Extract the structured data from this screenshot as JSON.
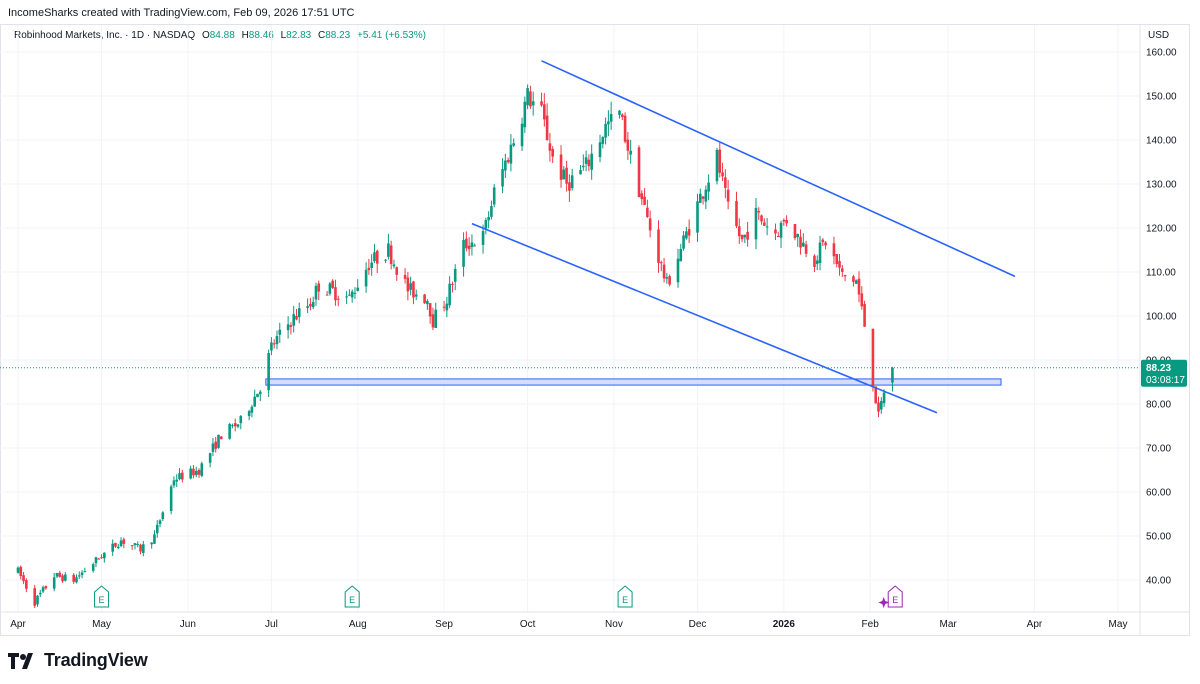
{
  "header": {
    "attribution": "IncomeSharks created with TradingView.com, Feb 09, 2026 17:51 UTC"
  },
  "legend": {
    "symbol": "Robinhood Markets, Inc. · 1D · NASDAQ",
    "open_label": "O",
    "open": "84.88",
    "high_label": "H",
    "high": "88.46",
    "low_label": "L",
    "low": "82.83",
    "close_label": "C",
    "close": "88.23",
    "change": "+5.41 (+6.53%)"
  },
  "price_axis": {
    "currency": "USD",
    "last_price": "88.23",
    "countdown": "03:08:17"
  },
  "footer": {
    "brand": "TradingView"
  },
  "colors": {
    "up": "#089981",
    "down": "#f23645",
    "trendline": "#2962ff",
    "zone_fill": "#c9d6fb",
    "zone_stroke": "#2962ff",
    "grid": "#f0f3fa"
  },
  "chart_data": {
    "type": "candlestick",
    "y_ticks": [
      "160.00",
      "150.00",
      "140.00",
      "130.00",
      "120.00",
      "110.00",
      "100.00",
      "90.00",
      "80.00",
      "70.00",
      "60.00",
      "50.00",
      "40.00"
    ],
    "y_range": [
      35,
      163
    ],
    "x_labels": [
      {
        "label": "Apr",
        "date": "2025-04-01"
      },
      {
        "label": "May",
        "date": "2025-05-01"
      },
      {
        "label": "Jun",
        "date": "2025-06-01"
      },
      {
        "label": "Jul",
        "date": "2025-07-01"
      },
      {
        "label": "Aug",
        "date": "2025-08-01"
      },
      {
        "label": "Sep",
        "date": "2025-09-01"
      },
      {
        "label": "Oct",
        "date": "2025-10-01"
      },
      {
        "label": "Nov",
        "date": "2025-11-01"
      },
      {
        "label": "Dec",
        "date": "2025-12-01"
      },
      {
        "label": "2026",
        "date": "2026-01-01",
        "bold": true
      },
      {
        "label": "Feb",
        "date": "2026-02-01"
      },
      {
        "label": "Mar",
        "date": "2026-03-01"
      },
      {
        "label": "Apr",
        "date": "2026-04-01"
      },
      {
        "label": "May",
        "date": "2026-05-01"
      }
    ],
    "anchors": [
      [
        "2025-04-01",
        42
      ],
      [
        "2025-04-07",
        35
      ],
      [
        "2025-04-14",
        41
      ],
      [
        "2025-04-21",
        40
      ],
      [
        "2025-04-30",
        45
      ],
      [
        "2025-05-08",
        49
      ],
      [
        "2025-05-15",
        47
      ],
      [
        "2025-05-20",
        50
      ],
      [
        "2025-05-27",
        63
      ],
      [
        "2025-06-05",
        65
      ],
      [
        "2025-06-13",
        73
      ],
      [
        "2025-06-20",
        76
      ],
      [
        "2025-06-27",
        84
      ],
      [
        "2025-07-01",
        93
      ],
      [
        "2025-07-08",
        99
      ],
      [
        "2025-07-15",
        103
      ],
      [
        "2025-07-18",
        107
      ],
      [
        "2025-07-29",
        104
      ],
      [
        "2025-08-05",
        112
      ],
      [
        "2025-08-12",
        115
      ],
      [
        "2025-08-19",
        106
      ],
      [
        "2025-08-26",
        104
      ],
      [
        "2025-08-28",
        99
      ],
      [
        "2025-09-02",
        104
      ],
      [
        "2025-09-08",
        116
      ],
      [
        "2025-09-15",
        118
      ],
      [
        "2025-09-19",
        128
      ],
      [
        "2025-09-26",
        140
      ],
      [
        "2025-10-01",
        150
      ],
      [
        "2025-10-06",
        146
      ],
      [
        "2025-10-10",
        136
      ],
      [
        "2025-10-15",
        130
      ],
      [
        "2025-10-22",
        134
      ],
      [
        "2025-10-29",
        143
      ],
      [
        "2025-11-03",
        146
      ],
      [
        "2025-11-07",
        136
      ],
      [
        "2025-11-13",
        122
      ],
      [
        "2025-11-20",
        107
      ],
      [
        "2025-11-26",
        117
      ],
      [
        "2025-12-02",
        127
      ],
      [
        "2025-12-08",
        136
      ],
      [
        "2025-12-12",
        124
      ],
      [
        "2025-12-17",
        117
      ],
      [
        "2025-12-22",
        123
      ],
      [
        "2025-12-29",
        119
      ],
      [
        "2026-01-02",
        122
      ],
      [
        "2026-01-06",
        118
      ],
      [
        "2026-01-12",
        113
      ],
      [
        "2026-01-16",
        117
      ],
      [
        "2026-01-22",
        109
      ],
      [
        "2026-01-27",
        108
      ],
      [
        "2026-01-30",
        98
      ],
      [
        "2026-02-02",
        85
      ],
      [
        "2026-02-04",
        77
      ],
      [
        "2026-02-06",
        83
      ],
      [
        "2026-02-09",
        88.23
      ]
    ],
    "last_candle": {
      "date": "2026-02-09",
      "open": 84.88,
      "high": 88.46,
      "low": 82.83,
      "close": 88.23
    },
    "trendlines": [
      {
        "from": [
          "2025-10-06",
          158
        ],
        "to": [
          "2026-03-25",
          109
        ]
      },
      {
        "from": [
          "2025-09-11",
          121
        ],
        "to": [
          "2026-02-25",
          78
        ]
      }
    ],
    "support_zone": {
      "from": "2025-06-29",
      "to": "2026-03-20",
      "low": 84.3,
      "high": 85.7
    },
    "earnings_markers": [
      {
        "label": "E",
        "date": "2025-05-01"
      },
      {
        "label": "E",
        "date": "2025-07-30"
      },
      {
        "label": "E",
        "date": "2025-11-05"
      },
      {
        "label": "E",
        "date": "2026-02-10",
        "upcoming": true
      }
    ],
    "grid": true
  }
}
